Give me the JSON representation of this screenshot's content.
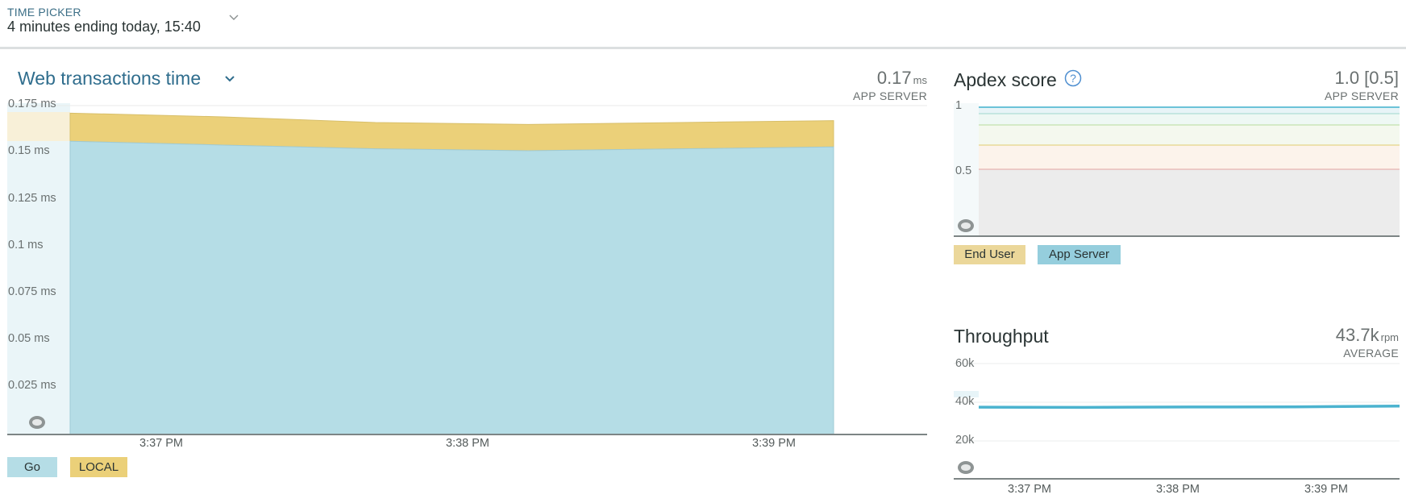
{
  "time_picker": {
    "label": "TIME PICKER",
    "value": "4 minutes ending today, 15:40"
  },
  "web_transactions": {
    "title": "Web transactions time",
    "value": "0.17",
    "unit": "ms",
    "sublabel": "APP SERVER",
    "legend": [
      {
        "label": "Go",
        "color": "#b5dde6"
      },
      {
        "label": "LOCAL",
        "color": "#ebd079"
      }
    ]
  },
  "apdex": {
    "title": "Apdex score",
    "value": "1.0 [0.5]",
    "sublabel": "APP SERVER",
    "legend": [
      {
        "label": "End User",
        "color": "#ebd79a"
      },
      {
        "label": "App Server",
        "color": "#95cedd"
      }
    ]
  },
  "throughput": {
    "title": "Throughput",
    "value": "43.7k",
    "unit": "rpm",
    "sublabel": "AVERAGE"
  },
  "chart_data": [
    {
      "type": "area",
      "title": "Web transactions time",
      "x": [
        "3:36:50 PM",
        "3:37:30 PM",
        "3:38:10 PM",
        "3:38:30 PM",
        "3:38:50 PM",
        "3:39:30 PM"
      ],
      "xticks": [
        "3:37 PM",
        "3:38 PM",
        "3:39 PM"
      ],
      "yticks": [
        "0.175 ms",
        "0.15 ms",
        "0.125 ms",
        "0.1 ms",
        "0.075 ms",
        "0.05 ms",
        "0.025 ms"
      ],
      "ylim": [
        0,
        0.175
      ],
      "series": [
        {
          "name": "Go",
          "values": [
            0.156,
            0.154,
            0.152,
            0.151,
            0.152,
            0.153
          ],
          "color": "#b5dde6"
        },
        {
          "name": "LOCAL",
          "values": [
            0.015,
            0.015,
            0.014,
            0.014,
            0.014,
            0.014
          ],
          "color": "#ebd079"
        }
      ]
    },
    {
      "type": "line",
      "title": "Apdex score",
      "yticks": [
        "1",
        "0.5"
      ],
      "ylim": [
        0,
        1
      ],
      "series": [
        {
          "name": "App Server",
          "values": [
            1.0,
            1.0,
            1.0,
            1.0
          ],
          "color": "#95cedd"
        }
      ]
    },
    {
      "type": "line",
      "title": "Throughput",
      "xticks": [
        "3:37 PM",
        "3:38 PM",
        "3:39 PM"
      ],
      "yticks": [
        "60k",
        "40k",
        "20k"
      ],
      "ylim": [
        0,
        70000
      ],
      "series": [
        {
          "name": "Throughput",
          "values": [
            43500,
            43400,
            43600,
            43700,
            44200
          ],
          "color": "#4bb3cf"
        }
      ]
    }
  ]
}
